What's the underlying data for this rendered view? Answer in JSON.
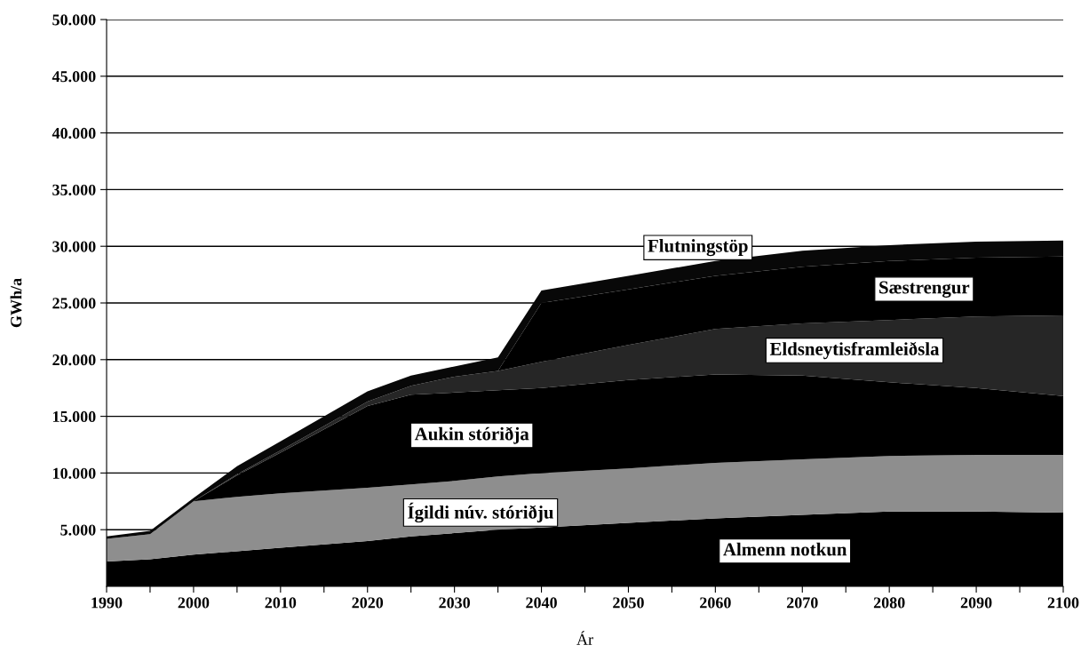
{
  "chart_data": {
    "type": "area",
    "stacked": true,
    "xlabel": "Ár",
    "ylabel": "GWh/a",
    "x": [
      1990,
      1995,
      2000,
      2005,
      2010,
      2020,
      2025,
      2030,
      2035,
      2040,
      2050,
      2060,
      2070,
      2080,
      2090,
      2100
    ],
    "series": [
      {
        "name": "Almenn notkun",
        "color": "#000000",
        "values": [
          2200,
          2400,
          2800,
          3100,
          3400,
          4000,
          4400,
          4700,
          5000,
          5200,
          5600,
          6000,
          6300,
          6600,
          6600,
          6500
        ]
      },
      {
        "name": "Ígildi núv. stóriðju",
        "color": "#8e8e8e",
        "values": [
          2000,
          2200,
          4700,
          4800,
          4800,
          4700,
          4600,
          4600,
          4700,
          4800,
          4800,
          4900,
          4900,
          4900,
          5000,
          5100
        ]
      },
      {
        "name": "Aukin stóriðja",
        "color": "#000000",
        "values": [
          0,
          0,
          0,
          1900,
          3600,
          7200,
          7900,
          7800,
          7600,
          7500,
          7800,
          7800,
          7400,
          6500,
          5900,
          5200
        ]
      },
      {
        "name": "Eldsneytisframleiðsla",
        "color": "#262626",
        "values": [
          0,
          0,
          0,
          100,
          200,
          400,
          800,
          1400,
          1700,
          2300,
          3100,
          4000,
          4600,
          5500,
          6300,
          7100
        ]
      },
      {
        "name": "Sæstrengur",
        "color": "#000000",
        "values": [
          0,
          0,
          0,
          0,
          0,
          0,
          0,
          0,
          0,
          5200,
          4900,
          4700,
          5000,
          5200,
          5200,
          5200
        ]
      },
      {
        "name": "Flutningstöp",
        "color": "#080808",
        "values": [
          200,
          300,
          300,
          700,
          800,
          900,
          900,
          900,
          1200,
          1100,
          1200,
          1300,
          1400,
          1400,
          1400,
          1400
        ]
      }
    ],
    "xlim": [
      1990,
      2100
    ],
    "xticks": [
      1990,
      {
        "value": 1995,
        "label": null
      },
      2000,
      {
        "value": 2005,
        "label": null
      },
      2010,
      {
        "value": 2015,
        "label": null
      },
      2020,
      {
        "value": 2025,
        "label": null
      },
      2030,
      {
        "value": 2035,
        "label": null
      },
      2040,
      {
        "value": 2045,
        "label": null
      },
      2050,
      {
        "value": 2055,
        "label": null
      },
      2060,
      {
        "value": 2065,
        "label": null
      },
      2070,
      {
        "value": 2075,
        "label": null
      },
      2080,
      {
        "value": 2085,
        "label": null
      },
      2090,
      {
        "value": 2095,
        "label": null
      },
      2100
    ],
    "ylim": [
      0,
      50000
    ],
    "yticks": [
      {
        "value": 5000,
        "label": "5.000"
      },
      {
        "value": 10000,
        "label": "10.000"
      },
      {
        "value": 15000,
        "label": "15.000"
      },
      {
        "value": 20000,
        "label": "20.000"
      },
      {
        "value": 25000,
        "label": "25.000"
      },
      {
        "value": 30000,
        "label": "30.000"
      },
      {
        "value": 35000,
        "label": "35.000"
      },
      {
        "value": 40000,
        "label": "40.000"
      },
      {
        "value": 45000,
        "label": "45.000"
      },
      {
        "value": 50000,
        "label": "50.000"
      }
    ],
    "grid": "y",
    "legend": false
  }
}
